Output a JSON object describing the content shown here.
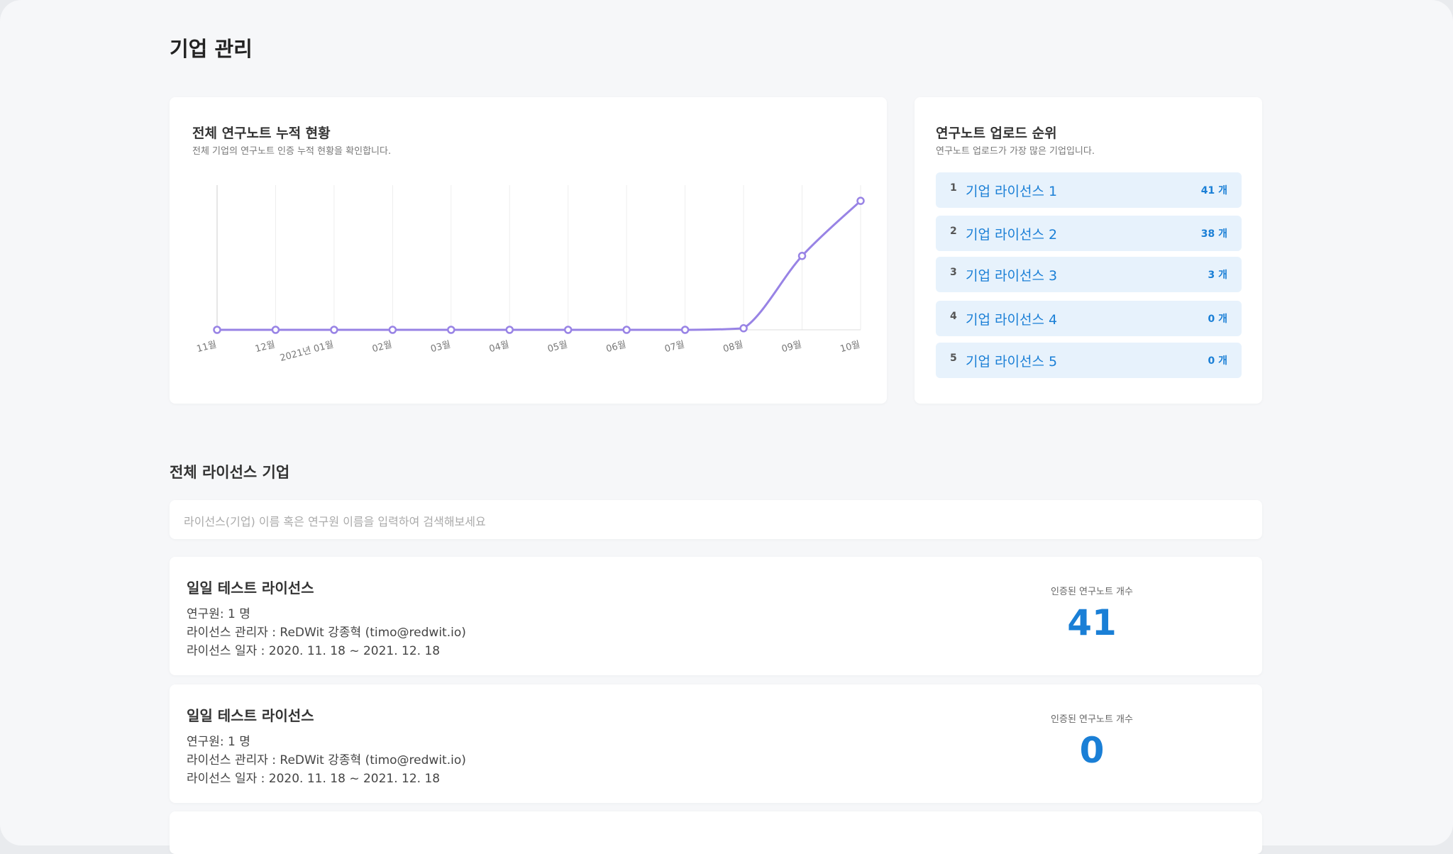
{
  "header": {
    "title": "기업 관리"
  },
  "chart_card": {
    "title": "전체 연구노트 누적 현황",
    "subtitle": "전체 기업의 연구노트 인증 누적 현황을 확인합니다.",
    "chart_data": {
      "type": "line",
      "categories": [
        "11월",
        "12월",
        "2021년 01월",
        "02월",
        "03월",
        "04월",
        "05월",
        "06월",
        "07월",
        "08월",
        "09월",
        "10월"
      ],
      "series": [
        {
          "color": "#9883e5",
          "values": [
            0,
            0,
            0,
            0,
            0,
            0,
            0,
            0,
            0,
            1,
            47,
            82
          ]
        }
      ],
      "ylim": [
        0,
        92
      ],
      "grid": true
    }
  },
  "ranking": {
    "title": "연구노트 업로드 순위",
    "subtitle": "연구노트 업로드가 가장 많은 기업입니다.",
    "items": [
      {
        "rank": 1,
        "name": "기업 라이선스 1",
        "count": "41 개"
      },
      {
        "rank": 2,
        "name": "기업 라이선스 2",
        "count": "38 개"
      },
      {
        "rank": 3,
        "name": "기업 라이선스 3",
        "count": "3 개"
      },
      {
        "rank": 4,
        "name": "기업 라이선스 4",
        "count": "0 개"
      },
      {
        "rank": 5,
        "name": "기업 라이선스 5",
        "count": "0 개"
      }
    ]
  },
  "licenses": {
    "title": "전체 라이선스 기업",
    "search_placeholder": "라이선스(기업) 이름 혹은 연구원 이름을 입력하여 검색해보세요",
    "items": [
      {
        "name": "일일 테스트 라이선스",
        "researchers": "연구원: 1 명",
        "manager": "라이선스 관리자 : ReDWit 강종혁 (timo@redwit.io)",
        "period": "라이선스 일자 : 2020. 11. 18 ~ 2021. 12. 18",
        "count_label": "인증된 연구노트 개수",
        "count": 41
      },
      {
        "name": "일일 테스트 라이선스",
        "researchers": "연구원: 1 명",
        "manager": "라이선스 관리자 : ReDWit 강종혁 (timo@redwit.io)",
        "period": "라이선스 일자 : 2020. 11. 18 ~ 2021. 12. 18",
        "count_label": "인증된 연구노트 개수",
        "count": 0
      }
    ]
  }
}
